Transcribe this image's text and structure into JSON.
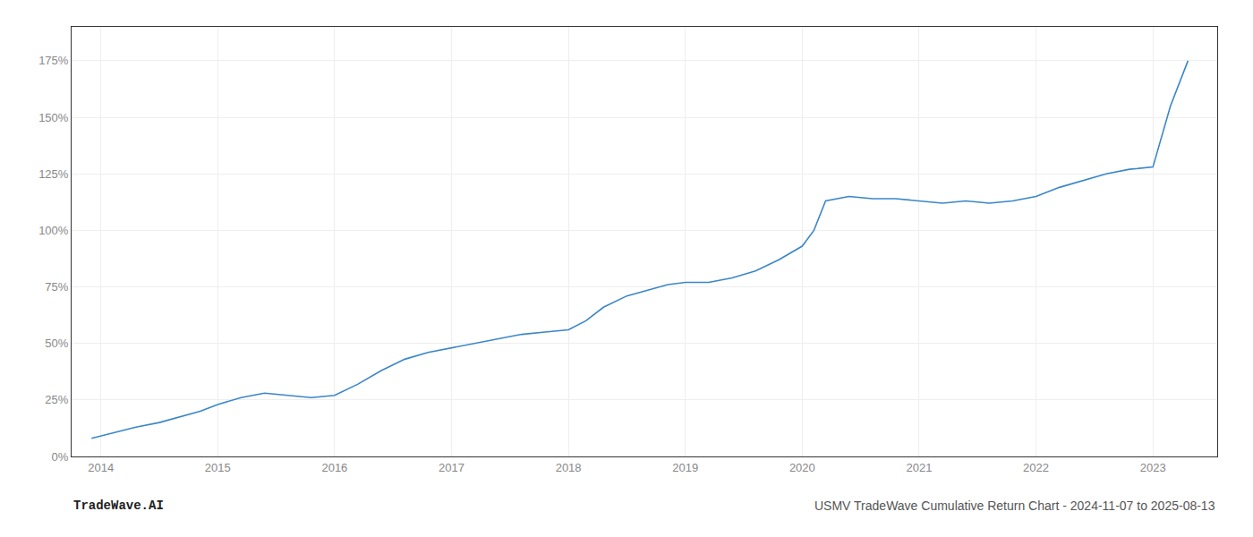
{
  "chart_data": {
    "type": "line",
    "x": [
      2013.92,
      2014.0,
      2014.15,
      2014.3,
      2014.5,
      2014.7,
      2014.85,
      2015.0,
      2015.2,
      2015.4,
      2015.6,
      2015.8,
      2016.0,
      2016.2,
      2016.4,
      2016.6,
      2016.8,
      2017.0,
      2017.2,
      2017.4,
      2017.6,
      2017.8,
      2018.0,
      2018.15,
      2018.3,
      2018.5,
      2018.7,
      2018.85,
      2019.0,
      2019.2,
      2019.4,
      2019.6,
      2019.8,
      2020.0,
      2020.1,
      2020.2,
      2020.4,
      2020.6,
      2020.8,
      2021.0,
      2021.2,
      2021.4,
      2021.6,
      2021.8,
      2022.0,
      2022.2,
      2022.4,
      2022.6,
      2022.8,
      2023.0,
      2023.15,
      2023.3
    ],
    "values": [
      8,
      9,
      11,
      13,
      15,
      18,
      20,
      23,
      26,
      28,
      27,
      26,
      27,
      32,
      38,
      43,
      46,
      48,
      50,
      52,
      54,
      55,
      56,
      60,
      66,
      71,
      74,
      76,
      77,
      77,
      79,
      82,
      87,
      93,
      100,
      113,
      115,
      114,
      114,
      113,
      112,
      113,
      112,
      113,
      115,
      119,
      122,
      125,
      127,
      128,
      155,
      175
    ],
    "color": "#3a86c8",
    "xlim": [
      2013.75,
      2023.55
    ],
    "xticks": [
      2014,
      2015,
      2016,
      2017,
      2018,
      2019,
      2020,
      2021,
      2022,
      2023
    ],
    "ylim": [
      0,
      190
    ],
    "yticks": [
      {
        "value": 0,
        "label": "0%"
      },
      {
        "value": 25,
        "label": "25%"
      },
      {
        "value": 50,
        "label": "50%"
      },
      {
        "value": 75,
        "label": "75%"
      },
      {
        "value": 100,
        "label": "100%"
      },
      {
        "value": 125,
        "label": "125%"
      },
      {
        "value": 150,
        "label": "150%"
      },
      {
        "value": 175,
        "label": "175%"
      }
    ],
    "grid": true,
    "annotations": [
      "TradeWave.AI",
      "USMV TradeWave Cumulative Return Chart - 2024-11-07 to 2025-08-13"
    ]
  }
}
